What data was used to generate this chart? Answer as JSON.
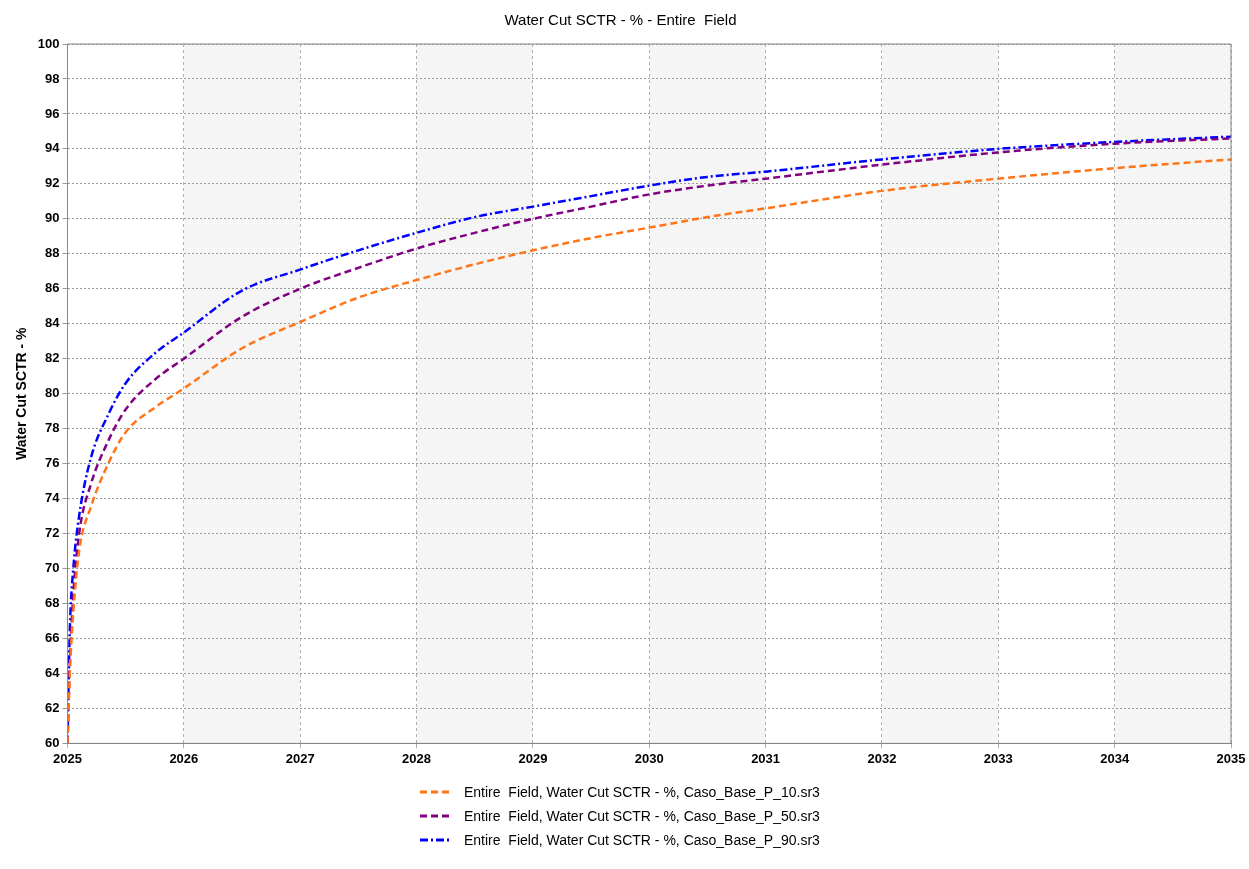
{
  "chart_data": {
    "type": "line",
    "title": "Water Cut SCTR - % - Entire  Field",
    "ylabel": "Water Cut SCTR - %",
    "x": [
      2025,
      2025.02,
      2025.05,
      2025.1,
      2025.2,
      2025.35,
      2025.5,
      2025.75,
      2026,
      2026.5,
      2027,
      2027.5,
      2028,
      2028.5,
      2029,
      2029.5,
      2030,
      2030.5,
      2031,
      2032,
      2033,
      2034,
      2035
    ],
    "series": [
      {
        "name": "Entire  Field, Water Cut SCTR - %, Caso_Base_P_10.sr3",
        "color": "#ff7518",
        "line_style": "dashed",
        "values": [
          60,
          64,
          67.5,
          71,
          73.5,
          76,
          77.8,
          79.2,
          80.3,
          82.6,
          84.1,
          85.5,
          86.5,
          87.4,
          88.2,
          88.9,
          89.5,
          90.1,
          90.6,
          91.6,
          92.3,
          92.9,
          93.4
        ]
      },
      {
        "name": "Entire  Field, Water Cut SCTR - %, Caso_Base_P_50.sr3",
        "color": "#800080",
        "line_style": "dashed",
        "values": [
          60,
          64.5,
          68.5,
          72,
          74.8,
          77.3,
          79.1,
          80.8,
          82.0,
          84.4,
          86.0,
          87.2,
          88.3,
          89.2,
          90.0,
          90.7,
          91.4,
          91.9,
          92.3,
          93.1,
          93.8,
          94.3,
          94.6
        ]
      },
      {
        "name": "Entire  Field, Water Cut SCTR - %, Caso_Base_P_90.sr3",
        "color": "#0000ff",
        "line_style": "dashdot",
        "values": [
          60,
          66.5,
          70,
          73,
          76.3,
          78.8,
          80.6,
          82.3,
          83.5,
          85.9,
          87.1,
          88.2,
          89.2,
          90.1,
          90.7,
          91.3,
          91.9,
          92.4,
          92.7,
          93.4,
          94.0,
          94.4,
          94.7
        ]
      }
    ],
    "xlim": [
      2025,
      2035
    ],
    "xticks": [
      2025,
      2026,
      2027,
      2028,
      2029,
      2030,
      2031,
      2032,
      2033,
      2034,
      2035
    ],
    "ylim": [
      60,
      100
    ],
    "yticks": [
      60,
      62,
      64,
      66,
      68,
      70,
      72,
      74,
      76,
      78,
      80,
      82,
      84,
      86,
      88,
      90,
      92,
      94,
      96,
      98,
      100
    ],
    "bands": [
      {
        "axis": "x",
        "from": 2026,
        "to": 2027,
        "color": "#f5f5f5"
      },
      {
        "axis": "x",
        "from": 2028,
        "to": 2029,
        "color": "#f5f5f5"
      },
      {
        "axis": "x",
        "from": 2030,
        "to": 2031,
        "color": "#f5f5f5"
      },
      {
        "axis": "x",
        "from": 2032,
        "to": 2033,
        "color": "#f5f5f5"
      },
      {
        "axis": "x",
        "from": 2034,
        "to": 2035,
        "color": "#f5f5f5"
      }
    ],
    "grid": true,
    "legend": "bottom",
    "marker": "none"
  }
}
